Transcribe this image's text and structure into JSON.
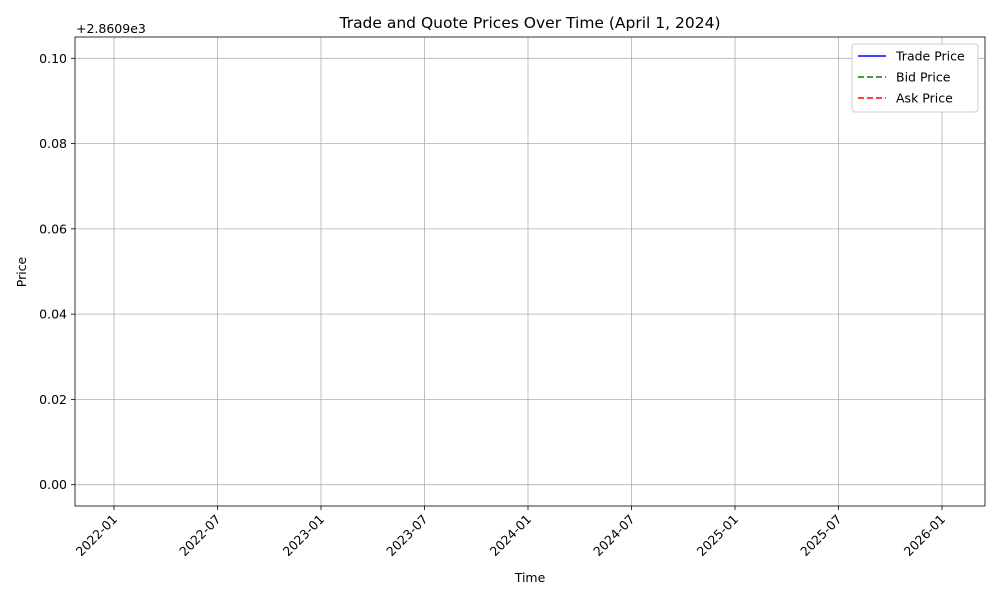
{
  "chart_data": {
    "type": "line",
    "title": "Trade and Quote Prices Over Time (April 1, 2024)",
    "xlabel": "Time",
    "ylabel": "Price",
    "y_offset_label": "+2.8609e3",
    "x_ticks": [
      "2022-01",
      "2022-07",
      "2023-01",
      "2023-07",
      "2024-01",
      "2024-07",
      "2025-01",
      "2025-07",
      "2026-01"
    ],
    "y_ticks": [
      "0.00",
      "0.02",
      "0.04",
      "0.06",
      "0.08",
      "0.10"
    ],
    "ylim": [
      -0.005,
      0.105
    ],
    "grid": true,
    "legend_position": "top-right",
    "series": [
      {
        "name": "Trade Price",
        "color": "#0000ff",
        "style": "solid",
        "values": []
      },
      {
        "name": "Bid Price",
        "color": "#008000",
        "style": "dashed",
        "values": []
      },
      {
        "name": "Ask Price",
        "color": "#ff0000",
        "style": "dashed",
        "values": []
      }
    ]
  }
}
